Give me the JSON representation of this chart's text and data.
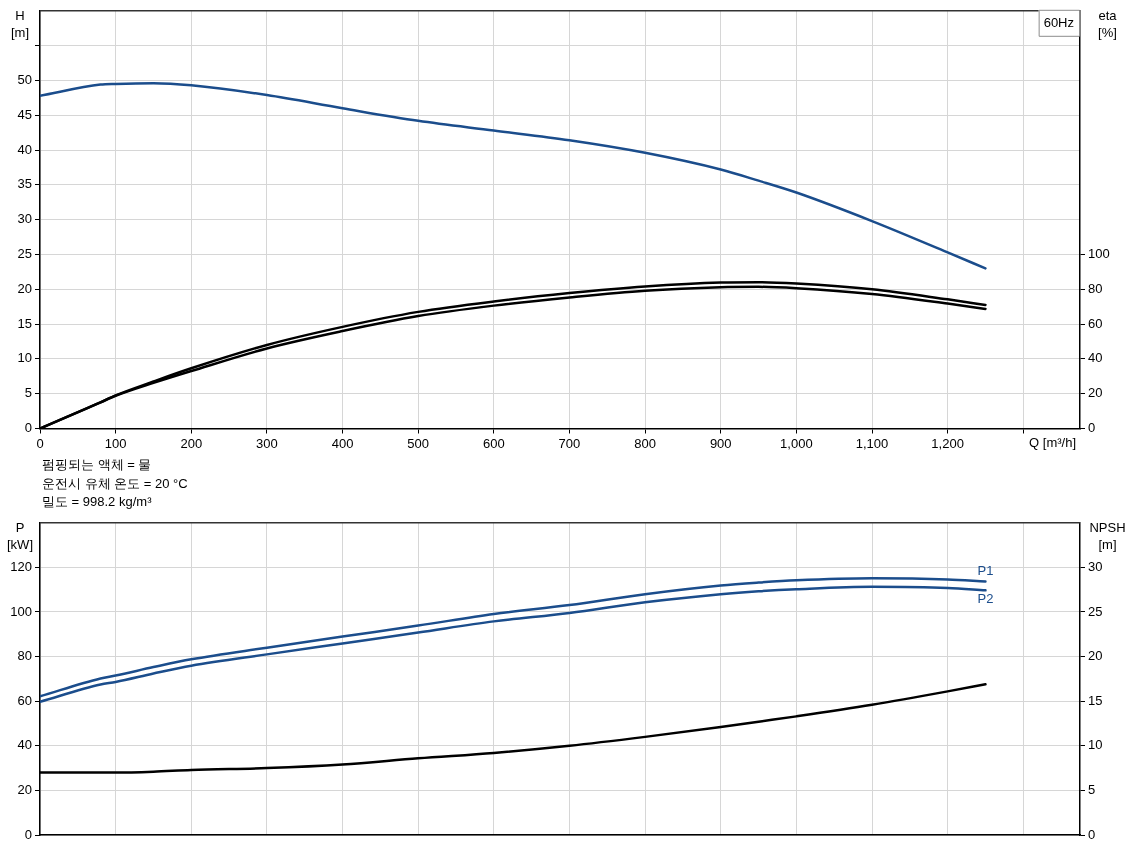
{
  "chart_data": [
    {
      "type": "line",
      "title": "60Hz",
      "xlabel": "Q [m³/h]",
      "ylabel": "H [m]",
      "y2label": "eta [%]",
      "annotations": [
        "펌핑되는 액체 = 물",
        "운전시 유체 온도 = 20 °C",
        "밀도 = 998.2 kg/m³"
      ],
      "x": [
        0,
        80,
        100,
        150,
        200,
        300,
        400,
        500,
        600,
        700,
        800,
        900,
        950,
        1000,
        1100,
        1200,
        1250
      ],
      "xlim": [
        0,
        1375
      ],
      "xticks": [
        0,
        100,
        200,
        300,
        400,
        500,
        600,
        700,
        800,
        900,
        {
          "value": 1000,
          "label": "1,000"
        },
        {
          "value": 1100,
          "label": "1,100"
        },
        {
          "value": 1200,
          "label": "1,200"
        },
        {
          "value": 1300,
          "label": null
        }
      ],
      "ylim": [
        0,
        60
      ],
      "yticks": [
        0,
        5,
        10,
        15,
        20,
        25,
        30,
        35,
        40,
        45,
        50,
        {
          "value": 55,
          "label": null
        }
      ],
      "y2lim": [
        0,
        240
      ],
      "y2ticks": [
        0,
        20,
        40,
        60,
        80,
        100
      ],
      "grid": true,
      "series": [
        {
          "color": "#1b4d8c",
          "values": [
            47.8,
            49.4,
            49.5,
            49.6,
            49.3,
            47.9,
            46.0,
            44.2,
            42.8,
            41.4,
            39.6,
            37.2,
            35.6,
            33.9,
            29.8,
            25.3,
            23.0
          ]
        },
        {
          "color": "#000000",
          "axis": "y2",
          "values": [
            0,
            15,
            19,
            27,
            34.6,
            48,
            58.4,
            67,
            73,
            77.8,
            81.6,
            83.9,
            84.1,
            83.3,
            80,
            74.2,
            71
          ]
        },
        {
          "color": "#000000",
          "axis": "y2",
          "values": [
            0,
            15,
            18.8,
            26.2,
            33,
            46,
            56,
            64.6,
            70.6,
            75.3,
            79.2,
            81.2,
            81.4,
            80.6,
            77.3,
            71.8,
            68.7
          ]
        }
      ]
    },
    {
      "type": "line",
      "ylabel": "P [kW]",
      "y2label": "NPSH [m]",
      "x": [
        0,
        80,
        100,
        150,
        200,
        300,
        400,
        500,
        600,
        700,
        800,
        900,
        950,
        1000,
        1100,
        1200,
        1250
      ],
      "xlim": [
        0,
        1375
      ],
      "xticks": [
        0,
        100,
        200,
        300,
        400,
        500,
        600,
        700,
        800,
        900,
        1000,
        1100,
        1200,
        1300
      ],
      "tick_labels": "y",
      "ylim": [
        0,
        140
      ],
      "yticks": [
        0,
        20,
        40,
        60,
        80,
        100,
        120
      ],
      "y2lim": [
        0,
        35
      ],
      "y2ticks": [
        0,
        5,
        10,
        15,
        20,
        25,
        30
      ],
      "grid": true,
      "series": [
        {
          "name": "P1",
          "color": "#1b4d8c",
          "values": [
            62.2,
            70.2,
            71.5,
            75.3,
            78.8,
            84.0,
            89.0,
            93.9,
            99.1,
            103.1,
            108.0,
            111.9,
            113.2,
            114.2,
            115.1,
            114.6,
            113.7
          ]
        },
        {
          "name": "P2",
          "color": "#1b4d8c",
          "values": [
            59.7,
            67.5,
            68.6,
            72.4,
            75.9,
            81.0,
            85.9,
            90.8,
            95.8,
            99.6,
            104.4,
            108.0,
            109.3,
            110.2,
            111.3,
            110.8,
            109.7
          ]
        },
        {
          "color": "#000000",
          "axis": "y2",
          "values": [
            7.0,
            7.0,
            7.0,
            7.1,
            7.3,
            7.5,
            7.9,
            8.6,
            9.2,
            10.0,
            11.0,
            12.1,
            12.7,
            13.3,
            14.6,
            16.1,
            16.9
          ]
        }
      ]
    }
  ]
}
